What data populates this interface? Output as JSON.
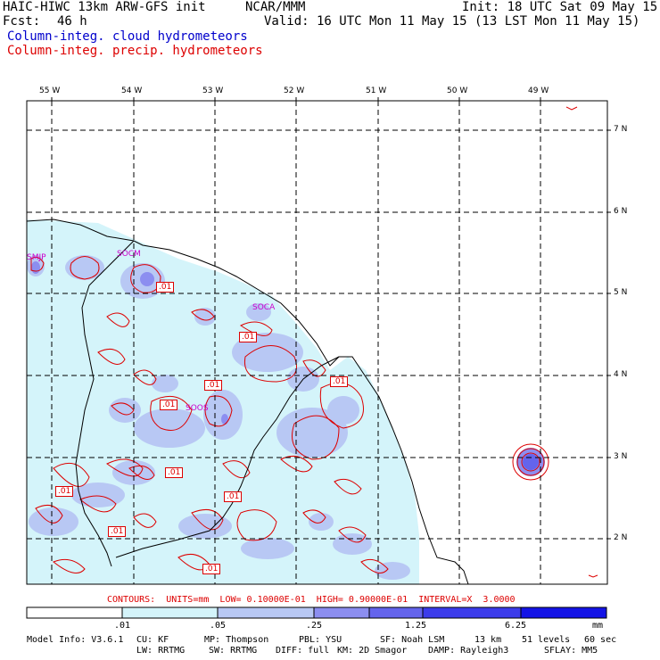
{
  "header": {
    "model": "HAIC-HIWC 13km ARW-GFS init",
    "center": "NCAR/MMM",
    "init": "Init: 18 UTC Sat 09 May 15",
    "fcst_label": "Fcst:",
    "fcst_value": "46 h",
    "valid": "Valid: 16 UTC Mon 11 May 15 (13 LST Mon 11 May 15)",
    "field1": "Column-integ. cloud hydrometeors",
    "field2": "Column-integ. precip. hydrometeors"
  },
  "colors": {
    "field1": "#0000cc",
    "field2": "#dd0000",
    "coast": "#000000",
    "grid": "#000000"
  },
  "map": {
    "lon_labels": [
      "55 W",
      "54 W",
      "53 W",
      "52 W",
      "51 W",
      "50 W",
      "49 W"
    ],
    "lat_labels": [
      "7 N",
      "6 N",
      "5 N",
      "4 N",
      "3 N",
      "2 N"
    ],
    "stations": [
      "SMJP",
      "SOCM",
      "SOCA",
      "SOOS"
    ],
    "contour_labels": [
      ".01",
      ".01",
      ".01",
      ".01",
      ".01",
      ".01",
      ".01",
      ".01",
      ".01",
      ".01"
    ]
  },
  "contours_text": "CONTOURS:  UNITS=mm  LOW= 0.10000E-01  HIGH= 0.90000E-01  INTERVAL=X  3.0000",
  "colorbar": {
    "ticks": [
      ".01",
      ".05",
      ".25",
      "1.25",
      "6.25"
    ],
    "unit": "mm",
    "colors": [
      "#ffffff",
      "#d4f4fa",
      "#b8c8f4",
      "#8c8ef0",
      "#6464ec",
      "#3c3cea",
      "#1414e6"
    ]
  },
  "footer": {
    "line1": {
      "model_info": "Model Info: V3.6.1",
      "cu": "CU: KF",
      "mp": "MP: Thompson",
      "pbl": "PBL: YSU",
      "sf": "SF: Noah LSM",
      "res": "13 km",
      "levels": "51 levels",
      "dt": "60 sec"
    },
    "line2": {
      "lw": "LW: RRTMG",
      "sw": "SW: RRTMG",
      "diff": "DIFF: full",
      "km": "KM: 2D Smagor",
      "damp": "DAMP: Rayleigh3",
      "sflay": "SFLAY: MM5"
    }
  }
}
